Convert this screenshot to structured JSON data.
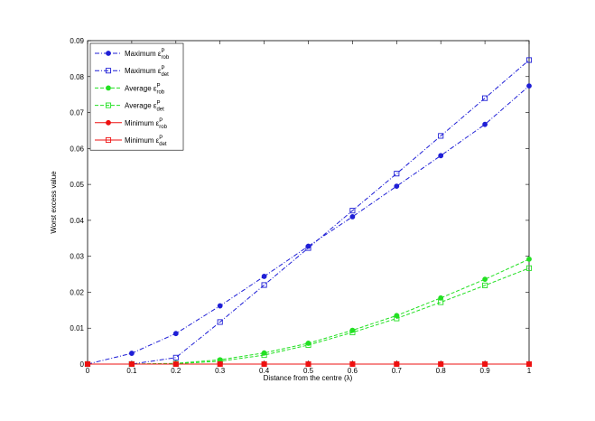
{
  "chart_data": {
    "type": "line",
    "xlabel": "Distance from the centre (λ)",
    "ylabel": "Worst excess value",
    "x": [
      0,
      0.1,
      0.2,
      0.3,
      0.4,
      0.5,
      0.6,
      0.7,
      0.8,
      0.9,
      1
    ],
    "xlim": [
      0,
      1
    ],
    "xticks": [
      0,
      0.1,
      0.2,
      0.3,
      0.4,
      0.5,
      0.6,
      0.7,
      0.8,
      0.9,
      1
    ],
    "ylim": [
      0,
      0.09
    ],
    "yticks": [
      0,
      0.01,
      0.02,
      0.03,
      0.04,
      0.05,
      0.06,
      0.07,
      0.08,
      0.09
    ],
    "legend": "upper left",
    "series": [
      {
        "name": "Maximum ε",
        "name_sup": "P",
        "name_sub": "rob",
        "color": "#1f1fd6",
        "linestyle": "dashdot",
        "marker": "circle",
        "values": [
          0,
          0.003,
          0.0085,
          0.0162,
          0.0244,
          0.0328,
          0.041,
          0.0495,
          0.058,
          0.0667,
          0.0774
        ]
      },
      {
        "name": "Maximum ε",
        "name_sup": "P",
        "name_sub": "det",
        "color": "#1f1fd6",
        "linestyle": "dashdot",
        "marker": "square",
        "values": [
          0,
          0,
          0.0018,
          0.0117,
          0.022,
          0.0323,
          0.0427,
          0.053,
          0.0635,
          0.074,
          0.0846
        ]
      },
      {
        "name": "Average ε",
        "name_sup": "P",
        "name_sub": "rob",
        "color": "#22e022",
        "linestyle": "dashed",
        "marker": "circle",
        "values": [
          0,
          0,
          0.0002,
          0.0012,
          0.0031,
          0.0058,
          0.0094,
          0.0135,
          0.0184,
          0.0236,
          0.0292
        ]
      },
      {
        "name": "Average ε",
        "name_sup": "P",
        "name_sub": "det",
        "color": "#22e022",
        "linestyle": "dashed",
        "marker": "square",
        "values": [
          0,
          0,
          0.0001,
          0.0008,
          0.0025,
          0.0053,
          0.0088,
          0.0127,
          0.0172,
          0.0219,
          0.0267
        ]
      },
      {
        "name": "Minimum ε",
        "name_sup": "P",
        "name_sub": "rob",
        "color": "#ee1111",
        "linestyle": "solid",
        "marker": "circle",
        "values": [
          0,
          0,
          0,
          0,
          0,
          0,
          0,
          0,
          0,
          0,
          0
        ]
      },
      {
        "name": "Minimum ε",
        "name_sup": "P",
        "name_sub": "det",
        "color": "#ee1111",
        "linestyle": "solid",
        "marker": "square",
        "values": [
          0,
          0,
          0,
          0,
          0,
          0,
          0,
          0,
          0,
          0,
          0
        ]
      }
    ]
  }
}
